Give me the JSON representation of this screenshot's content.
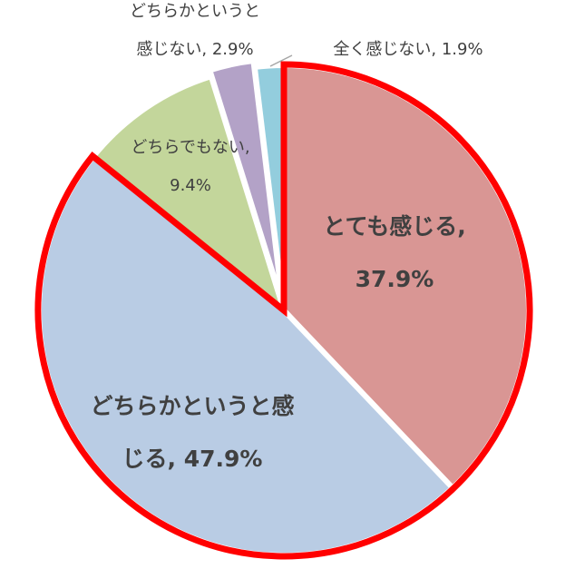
{
  "chart_data": {
    "type": "pie",
    "title": "",
    "slices": [
      {
        "label": "とても感じる",
        "value": 37.9,
        "color": "#d99694",
        "highlighted": true,
        "text_lines": [
          "とても感じる,",
          "37.9%"
        ],
        "label_style": "bold"
      },
      {
        "label": "どちらかというと感じる",
        "value": 47.9,
        "color": "#b9cce4",
        "highlighted": true,
        "text_lines": [
          "どちらかというと感",
          "じる, 47.9%"
        ],
        "label_style": "bold"
      },
      {
        "label": "どちらでもない",
        "value": 9.4,
        "color": "#c3d69b",
        "highlighted": false,
        "text_lines": [
          "どちらでもない,",
          "9.4%"
        ],
        "label_style": "normal"
      },
      {
        "label": "どちらかというと感じない",
        "value": 2.9,
        "color": "#b3a2c7",
        "highlighted": false,
        "text_lines": [
          "どちらかというと",
          "感じない, 2.9%"
        ],
        "label_style": "normal"
      },
      {
        "label": "全く感じない",
        "value": 1.9,
        "color": "#93cddd",
        "highlighted": false,
        "text_lines": [
          "全く感じない, 1.9%"
        ],
        "label_style": "normal"
      }
    ],
    "highlight_color": "#ff0000",
    "start_angle": "12 o'clock",
    "direction": "clockwise",
    "legend": "none"
  }
}
